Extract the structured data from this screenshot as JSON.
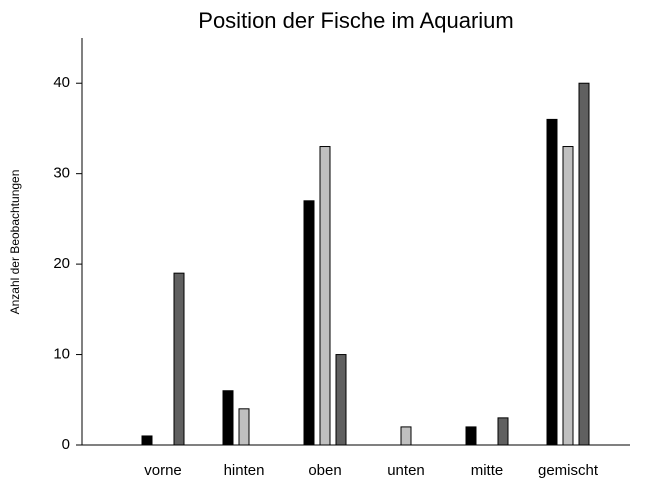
{
  "chart_data": {
    "type": "bar",
    "title": "Position der Fische im Aquarium",
    "y_label": "Anzahl der Beobachtungen",
    "categories": [
      "vorne",
      "hinten",
      "oben",
      "unten",
      "mitte",
      "gemischt"
    ],
    "series": [
      {
        "color": "#000000",
        "values": [
          1,
          6,
          27,
          0,
          2,
          36
        ]
      },
      {
        "color": "#c0c0c0",
        "values": [
          0,
          4,
          33,
          2,
          0,
          33
        ]
      },
      {
        "color": "#606060",
        "values": [
          19,
          0,
          10,
          0,
          3,
          40
        ]
      }
    ],
    "ylim": [
      0,
      45
    ],
    "yticks": [
      0,
      10,
      20,
      30,
      40
    ],
    "grid": false
  }
}
